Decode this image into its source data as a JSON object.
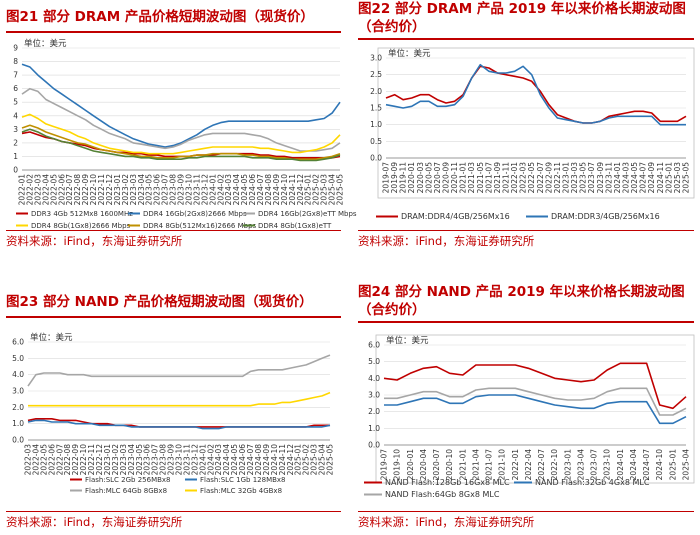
{
  "panels": [
    {
      "figure_title": "图21  部分 DRAM 产品价格短期波动图（现货价）",
      "source": "资料来源：iFind，东海证券研究所",
      "chart_data": {
        "type": "line",
        "unit_label": "单位：美元",
        "x": [
          "2022-01",
          "2022-02",
          "2022-03",
          "2022-04",
          "2022-05",
          "2022-06",
          "2022-07",
          "2022-08",
          "2022-09",
          "2022-10",
          "2022-11",
          "2022-12",
          "2023-01",
          "2023-02",
          "2023-03",
          "2023-04",
          "2023-05",
          "2023-06",
          "2023-07",
          "2023-08",
          "2023-09",
          "2023-10",
          "2023-11",
          "2023-12",
          "2024-01",
          "2024-02",
          "2024-03",
          "2024-04",
          "2024-05",
          "2024-06",
          "2024-07",
          "2024-08",
          "2024-09",
          "2024-10",
          "2024-11",
          "2024-12",
          "2025-01",
          "2025-02",
          "2025-03",
          "2025-04",
          "2025-05"
        ],
        "ylim": [
          0,
          9
        ],
        "yticks": [
          0,
          1,
          2,
          3,
          4,
          5,
          6,
          7,
          8,
          9
        ],
        "series": [
          {
            "name": "DDR3 4Gb 512Mx8 1600MHz",
            "color": "#c00000",
            "values": [
              2.7,
              2.8,
              2.6,
              2.4,
              2.3,
              2.1,
              2.0,
              1.9,
              1.8,
              1.6,
              1.5,
              1.4,
              1.3,
              1.3,
              1.2,
              1.2,
              1.1,
              1.1,
              1.0,
              1.0,
              1.0,
              1.0,
              1.1,
              1.1,
              1.1,
              1.2,
              1.2,
              1.2,
              1.2,
              1.2,
              1.1,
              1.1,
              1.0,
              1.0,
              0.9,
              0.9,
              0.9,
              0.9,
              0.9,
              0.9,
              1.0
            ]
          },
          {
            "name": "DDR4 16Gb(2Gx8)2666 Mbps",
            "color": "#2e75b6",
            "values": [
              7.8,
              7.6,
              7.0,
              6.5,
              6.0,
              5.6,
              5.2,
              4.8,
              4.4,
              4.0,
              3.6,
              3.2,
              2.9,
              2.6,
              2.3,
              2.1,
              1.9,
              1.8,
              1.7,
              1.8,
              2.0,
              2.3,
              2.6,
              3.0,
              3.3,
              3.5,
              3.6,
              3.6,
              3.6,
              3.6,
              3.6,
              3.6,
              3.6,
              3.6,
              3.6,
              3.6,
              3.6,
              3.7,
              3.8,
              4.2,
              5.0
            ]
          },
          {
            "name": "DDR4 16Gb(2Gx8)eTT Mbps",
            "color": "#a6a6a6",
            "values": [
              5.6,
              6.0,
              5.8,
              5.2,
              4.9,
              4.6,
              4.3,
              4.0,
              3.7,
              3.3,
              3.0,
              2.7,
              2.5,
              2.3,
              2.0,
              1.9,
              1.8,
              1.7,
              1.6,
              1.7,
              1.9,
              2.2,
              2.4,
              2.6,
              2.7,
              2.7,
              2.7,
              2.7,
              2.7,
              2.6,
              2.5,
              2.3,
              2.0,
              1.8,
              1.6,
              1.4,
              1.4,
              1.4,
              1.5,
              1.6,
              2.0
            ]
          },
          {
            "name": "DDR4 8Gb(1Gx8)2666 Mbps",
            "color": "#ffd700",
            "values": [
              3.9,
              4.1,
              3.8,
              3.4,
              3.2,
              3.0,
              2.8,
              2.5,
              2.3,
              2.0,
              1.8,
              1.6,
              1.5,
              1.4,
              1.3,
              1.3,
              1.2,
              1.2,
              1.2,
              1.2,
              1.3,
              1.4,
              1.5,
              1.6,
              1.7,
              1.7,
              1.7,
              1.7,
              1.7,
              1.7,
              1.6,
              1.6,
              1.5,
              1.4,
              1.3,
              1.3,
              1.4,
              1.5,
              1.7,
              2.0,
              2.6
            ]
          },
          {
            "name": "DDR4 8Gb(512Mx16)2666 Mbps",
            "color": "#bf9000",
            "values": [
              3.1,
              3.3,
              3.1,
              2.8,
              2.6,
              2.4,
              2.2,
              2.0,
              1.9,
              1.7,
              1.5,
              1.4,
              1.3,
              1.2,
              1.1,
              1.0,
              1.0,
              0.9,
              0.9,
              0.9,
              1.0,
              1.0,
              1.1,
              1.1,
              1.2,
              1.2,
              1.2,
              1.2,
              1.1,
              1.1,
              1.0,
              1.0,
              0.9,
              0.9,
              0.8,
              0.8,
              0.8,
              0.8,
              0.9,
              1.0,
              1.2
            ]
          },
          {
            "name": "DDR4 8Gb(1Gx8)eTT",
            "color": "#548235",
            "values": [
              2.8,
              3.0,
              2.8,
              2.5,
              2.3,
              2.1,
              2.0,
              1.8,
              1.6,
              1.4,
              1.3,
              1.2,
              1.1,
              1.0,
              1.0,
              0.9,
              0.9,
              0.8,
              0.8,
              0.8,
              0.8,
              0.9,
              0.9,
              1.0,
              1.0,
              1.0,
              1.0,
              1.0,
              1.0,
              0.9,
              0.9,
              0.9,
              0.8,
              0.8,
              0.8,
              0.7,
              0.7,
              0.7,
              0.8,
              0.9,
              1.1
            ]
          }
        ]
      }
    },
    {
      "figure_title": "图22  部分 DRAM 产品 2019 年以来价格长期波动图（合约价）",
      "source": "资料来源：iFind，东海证券研究所",
      "chart_data": {
        "type": "line",
        "unit_label": "单位：美元",
        "x": [
          "2019-07",
          "2019-09",
          "2019-11",
          "2020-01",
          "2020-03",
          "2020-05",
          "2020-07",
          "2020-09",
          "2020-11",
          "2021-01",
          "2021-03",
          "2021-05",
          "2021-07",
          "2021-09",
          "2021-11",
          "2022-01",
          "2022-03",
          "2022-05",
          "2022-07",
          "2022-09",
          "2022-11",
          "2023-01",
          "2023-03",
          "2023-05",
          "2023-07",
          "2023-09",
          "2023-11",
          "2024-01",
          "2024-03",
          "2024-05",
          "2024-07",
          "2024-09",
          "2024-11",
          "2025-01",
          "2025-03",
          "2025-05"
        ],
        "ylim": [
          0,
          3.0
        ],
        "yticks": [
          0,
          0.5,
          1.0,
          1.5,
          2.0,
          2.5,
          3.0
        ],
        "series": [
          {
            "name": "DRAM:DDR4/4GB/256Mx16",
            "color": "#c00000",
            "values": [
              1.8,
              1.9,
              1.75,
              1.8,
              1.9,
              1.9,
              1.75,
              1.65,
              1.7,
              1.9,
              2.4,
              2.75,
              2.7,
              2.55,
              2.5,
              2.45,
              2.4,
              2.3,
              2.0,
              1.6,
              1.3,
              1.2,
              1.1,
              1.05,
              1.05,
              1.1,
              1.25,
              1.3,
              1.35,
              1.4,
              1.4,
              1.35,
              1.1,
              1.1,
              1.1,
              1.25
            ]
          },
          {
            "name": "DRAM:DDR3/4GB/256Mx16",
            "color": "#2e75b6",
            "values": [
              1.6,
              1.55,
              1.5,
              1.55,
              1.7,
              1.7,
              1.55,
              1.55,
              1.6,
              1.85,
              2.4,
              2.8,
              2.6,
              2.55,
              2.55,
              2.6,
              2.75,
              2.5,
              1.9,
              1.5,
              1.2,
              1.15,
              1.1,
              1.05,
              1.05,
              1.1,
              1.2,
              1.25,
              1.25,
              1.25,
              1.25,
              1.25,
              1.0,
              1.0,
              1.0,
              1.0
            ]
          }
        ]
      }
    },
    {
      "figure_title": "图23  部分 NAND 产品价格短期波动图（现货价）",
      "source": "资料来源：iFind，东海证券研究所",
      "chart_data": {
        "type": "line",
        "unit_label": "单位：美元",
        "x": [
          "2022-03",
          "2022-04",
          "2022-05",
          "2022-06",
          "2022-07",
          "2022-08",
          "2022-09",
          "2022-10",
          "2022-11",
          "2022-12",
          "2023-01",
          "2023-02",
          "2023-03",
          "2023-04",
          "2023-05",
          "2023-06",
          "2023-07",
          "2023-08",
          "2023-09",
          "2023-10",
          "2023-11",
          "2023-12",
          "2024-01",
          "2024-02",
          "2024-03",
          "2024-04",
          "2024-05",
          "2024-06",
          "2024-07",
          "2024-08",
          "2024-09",
          "2024-10",
          "2024-11",
          "2024-12",
          "2025-01",
          "2025-02",
          "2025-03",
          "2025-04",
          "2025-05"
        ],
        "ylim": [
          0,
          6.0
        ],
        "yticks": [
          0,
          1.0,
          2.0,
          3.0,
          4.0,
          5.0,
          6.0
        ],
        "series": [
          {
            "name": "Flash:SLC 2Gb 256MBx8",
            "color": "#c00000",
            "values": [
              1.2,
              1.3,
              1.3,
              1.3,
              1.2,
              1.2,
              1.2,
              1.1,
              1.0,
              1.0,
              1.0,
              0.9,
              0.9,
              0.9,
              0.8,
              0.8,
              0.8,
              0.8,
              0.8,
              0.8,
              0.8,
              0.8,
              0.8,
              0.8,
              0.8,
              0.8,
              0.8,
              0.8,
              0.8,
              0.8,
              0.8,
              0.8,
              0.8,
              0.8,
              0.8,
              0.8,
              0.9,
              0.9,
              0.9
            ]
          },
          {
            "name": "Flash:SLC 1Gb 128MBx8",
            "color": "#2e75b6",
            "values": [
              1.1,
              1.2,
              1.2,
              1.1,
              1.1,
              1.1,
              1.0,
              1.0,
              1.0,
              0.9,
              0.9,
              0.9,
              0.9,
              0.8,
              0.8,
              0.8,
              0.8,
              0.8,
              0.8,
              0.8,
              0.8,
              0.8,
              0.7,
              0.7,
              0.7,
              0.8,
              0.8,
              0.8,
              0.8,
              0.8,
              0.8,
              0.8,
              0.8,
              0.8,
              0.8,
              0.8,
              0.8,
              0.8,
              0.9
            ]
          },
          {
            "name": "Flash:MLC 64Gb 8GBx8",
            "color": "#a6a6a6",
            "values": [
              3.3,
              4.0,
              4.1,
              4.1,
              4.1,
              4.0,
              4.0,
              4.0,
              3.9,
              3.9,
              3.9,
              3.9,
              3.9,
              3.9,
              3.9,
              3.9,
              3.9,
              3.9,
              3.9,
              3.9,
              3.9,
              3.9,
              3.9,
              3.9,
              3.9,
              3.9,
              3.9,
              3.9,
              4.2,
              4.3,
              4.3,
              4.3,
              4.3,
              4.4,
              4.5,
              4.6,
              4.8,
              5.0,
              5.2
            ]
          },
          {
            "name": "Flash:MLC 32Gb 4GBx8",
            "color": "#ffd700",
            "values": [
              2.1,
              2.1,
              2.1,
              2.1,
              2.1,
              2.1,
              2.1,
              2.1,
              2.1,
              2.1,
              2.1,
              2.1,
              2.1,
              2.1,
              2.1,
              2.1,
              2.1,
              2.1,
              2.1,
              2.1,
              2.1,
              2.1,
              2.1,
              2.1,
              2.1,
              2.1,
              2.1,
              2.1,
              2.1,
              2.2,
              2.2,
              2.2,
              2.3,
              2.3,
              2.4,
              2.5,
              2.6,
              2.7,
              2.9
            ]
          }
        ]
      }
    },
    {
      "figure_title": "图24  部分 NAND 产品 2019 年以来价格长期波动图（合约价）",
      "source": "资料来源：iFind，东海证券研究所",
      "chart_data": {
        "type": "line",
        "unit_label": "单位：美元",
        "x": [
          "2019-07",
          "2019-10",
          "2020-01",
          "2020-04",
          "2020-07",
          "2020-10",
          "2021-01",
          "2021-04",
          "2021-07",
          "2021-10",
          "2022-01",
          "2022-04",
          "2022-07",
          "2022-10",
          "2023-01",
          "2023-04",
          "2023-07",
          "2023-10",
          "2024-01",
          "2024-04",
          "2024-07",
          "2024-10",
          "2025-01",
          "2025-04"
        ],
        "ylim": [
          0,
          6.0
        ],
        "yticks": [
          0,
          1.0,
          2.0,
          3.0,
          4.0,
          5.0,
          6.0
        ],
        "series": [
          {
            "name": "NAND Flash:128Gb 16Gx8 MLC",
            "color": "#c00000",
            "values": [
              4.0,
              3.9,
              4.3,
              4.6,
              4.7,
              4.3,
              4.2,
              4.8,
              4.8,
              4.8,
              4.8,
              4.6,
              4.3,
              4.0,
              3.9,
              3.8,
              3.9,
              4.5,
              4.9,
              4.9,
              4.9,
              2.4,
              2.2,
              2.9
            ]
          },
          {
            "name": "NAND Flash:32Gb 4Gx8 MLC",
            "color": "#2e75b6",
            "values": [
              2.4,
              2.4,
              2.6,
              2.8,
              2.8,
              2.5,
              2.5,
              2.9,
              3.0,
              3.0,
              3.0,
              2.8,
              2.6,
              2.4,
              2.3,
              2.2,
              2.2,
              2.5,
              2.6,
              2.6,
              2.6,
              1.3,
              1.3,
              1.7
            ]
          },
          {
            "name": "NAND Flash:64Gb 8Gx8 MLC",
            "color": "#a6a6a6",
            "values": [
              2.8,
              2.8,
              3.0,
              3.2,
              3.2,
              2.9,
              2.9,
              3.3,
              3.4,
              3.4,
              3.4,
              3.2,
              3.0,
              2.8,
              2.7,
              2.7,
              2.8,
              3.2,
              3.4,
              3.4,
              3.4,
              1.8,
              1.8,
              2.2
            ]
          }
        ]
      }
    }
  ]
}
